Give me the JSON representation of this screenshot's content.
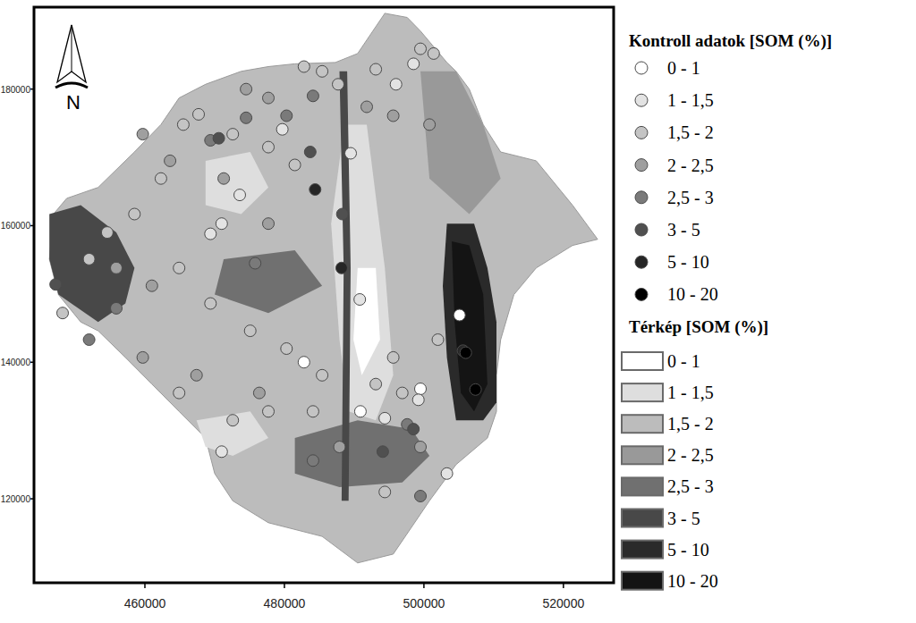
{
  "chart_data": {
    "type": "scatter",
    "legend": "right",
    "grid": false,
    "north_label": "N",
    "legend_title": "Kontroll adatok [SOM (%)]",
    "map_legend_title": "Térkép [SOM (%)]",
    "xlim": [
      444100,
      527200
    ],
    "ylim": [
      107700,
      192000
    ],
    "xticks": [
      460000,
      480000,
      500000,
      520000
    ],
    "yticks": [
      120000,
      140000,
      160000,
      180000
    ],
    "series": [
      {
        "name": "0 - 1",
        "color": "#ffffff",
        "x": [
          505100,
          482800,
          490900,
          499500
        ],
        "values": [
          146900,
          140000,
          132800,
          136100
        ]
      },
      {
        "name": "1 - 1,5",
        "color": "#e3e3e3",
        "x": [
          498500,
          496000,
          489500,
          473600,
          471000,
          469400,
          499200,
          494400,
          479700,
          471000,
          503300,
          490800
        ],
        "values": [
          183700,
          180700,
          170600,
          164500,
          160300,
          158800,
          134500,
          131800,
          174100,
          126900,
          123700,
          149200
        ]
      },
      {
        "name": "1,5 - 2",
        "color": "#c4c4c4",
        "x": [
          482800,
          485400,
          487700,
          493100,
          499500,
          501400,
          465500,
          467700,
          472600,
          477700,
          481500,
          462300,
          458500,
          454600,
          452000,
          448200,
          464900,
          469400,
          475100,
          480300,
          485400,
          495600,
          496900,
          493100,
          464900,
          472600,
          477700,
          484100,
          494400,
          502000
        ],
        "values": [
          183300,
          182600,
          180700,
          182900,
          185900,
          185200,
          174800,
          176300,
          173400,
          171500,
          168900,
          166900,
          161700,
          159000,
          155100,
          147200,
          153800,
          148600,
          144600,
          142000,
          138100,
          140700,
          135500,
          136800,
          135500,
          131500,
          132800,
          132800,
          121000,
          143300
        ]
      },
      {
        "name": "2 - 2,5",
        "color": "#9f9f9f",
        "x": [
          474500,
          477700,
          491800,
          495600,
          500800,
          459700,
          463600,
          471300,
          477700,
          461000,
          455900,
          459700,
          467400,
          476400,
          487900,
          499500
        ],
        "values": [
          180000,
          178700,
          177400,
          176100,
          174800,
          173400,
          169500,
          166900,
          160300,
          151200,
          153800,
          140700,
          138100,
          135500,
          127600,
          127600
        ]
      },
      {
        "name": "2,5 - 3",
        "color": "#7a7a7a",
        "x": [
          469400,
          474500,
          480300,
          484100,
          455900,
          452000,
          475800,
          497600,
          484100,
          499500
        ],
        "values": [
          172500,
          175800,
          176100,
          179000,
          147900,
          143300,
          154500,
          130900,
          125600,
          120400
        ]
      },
      {
        "name": "3 - 5",
        "color": "#505050",
        "x": [
          470600,
          483700,
          498500,
          488300,
          447200,
          494100
        ],
        "values": [
          172800,
          170800,
          130200,
          161700,
          151400,
          126900
        ]
      },
      {
        "name": "5 - 10",
        "color": "#262626",
        "x": [
          488200,
          484400,
          505600
        ],
        "values": [
          153800,
          165300,
          141700
        ]
      },
      {
        "name": "10 - 20",
        "color": "#000000",
        "x": [
          507400,
          506000
        ],
        "values": [
          136000,
          141400
        ]
      }
    ],
    "map_classes": [
      {
        "name": "0 - 1",
        "color": "#ffffff"
      },
      {
        "name": "1 - 1,5",
        "color": "#dedede"
      },
      {
        "name": "1,5 - 2",
        "color": "#bcbcbc"
      },
      {
        "name": "2 - 2,5",
        "color": "#999999"
      },
      {
        "name": "2,5 - 3",
        "color": "#707070"
      },
      {
        "name": "3 - 5",
        "color": "#484848"
      },
      {
        "name": "5 - 10",
        "color": "#2a2a2a"
      },
      {
        "name": "10 - 20",
        "color": "#141414"
      }
    ],
    "map_areas": [
      {
        "class": 2,
        "x": [
          481500,
          487300,
          490500,
          494400,
          497600,
          499500,
          503300,
          504600,
          506500,
          508500,
          511000,
          516100,
          521300,
          524900,
          521300,
          516100,
          512900,
          511000,
          510400,
          510400,
          509100,
          504600,
          500800,
          498200,
          495600,
          490500,
          485400,
          477700,
          472600,
          470000,
          468700,
          464900,
          461000,
          457200,
          453300,
          450800,
          447600,
          446300,
          446900,
          448800,
          453300,
          458500,
          462300,
          464900,
          468700,
          473800,
          477700
        ],
        "y": [
          183700,
          183900,
          185200,
          191100,
          190500,
          188500,
          183900,
          182600,
          180000,
          174800,
          170800,
          169500,
          163000,
          158000,
          157100,
          153800,
          149900,
          143300,
          138100,
          132800,
          128900,
          125000,
          119700,
          115800,
          111900,
          110600,
          114500,
          116500,
          119700,
          123700,
          128900,
          132800,
          136800,
          140700,
          144600,
          145900,
          149900,
          155100,
          161700,
          164000,
          165600,
          170800,
          174800,
          178700,
          180700,
          182600,
          183300
        ]
      },
      {
        "class": 3,
        "x": [
          499500,
          504600,
          508500,
          511000,
          506500,
          500800
        ],
        "y": [
          182600,
          182600,
          174800,
          166900,
          161700,
          166900
        ]
      },
      {
        "class": 5,
        "x": [
          446300,
          450800,
          455900,
          458500,
          457200,
          453300,
          447600,
          446300
        ],
        "y": [
          161700,
          163000,
          159000,
          153800,
          148600,
          145900,
          149900,
          155100
        ]
      },
      {
        "class": 4,
        "x": [
          471300,
          481500,
          485400,
          477700,
          470000
        ],
        "y": [
          155100,
          156400,
          151200,
          147200,
          149900
        ]
      },
      {
        "class": 4,
        "x": [
          481500,
          490500,
          498200,
          500800,
          496900,
          487900,
          481500
        ],
        "y": [
          128900,
          131500,
          130200,
          126300,
          122400,
          121700,
          123700
        ]
      },
      {
        "class": 1,
        "x": [
          468700,
          475100,
          477700,
          473800,
          468700
        ],
        "y": [
          169500,
          170800,
          165600,
          161700,
          163000
        ]
      },
      {
        "class": 1,
        "x": [
          467400,
          475100,
          477700,
          472600,
          468700
        ],
        "y": [
          131500,
          132800,
          128900,
          126300,
          127600
        ]
      },
      {
        "class": 1,
        "x": [
          488600,
          491800,
          494400,
          495600,
          493100,
          489200,
          487900,
          486700
        ],
        "y": [
          174800,
          174800,
          153800,
          138100,
          131500,
          132800,
          143300,
          160300
        ]
      },
      {
        "class": 0,
        "x": [
          490500,
          493100,
          493700,
          491100,
          489900
        ],
        "y": [
          153800,
          153800,
          143300,
          138100,
          143300
        ]
      },
      {
        "class": 6,
        "x": [
          503300,
          507200,
          509100,
          510400,
          510400,
          508500,
          504600,
          503300,
          502700
        ],
        "y": [
          160300,
          160300,
          153800,
          145900,
          134100,
          131500,
          131500,
          140700,
          151200
        ]
      },
      {
        "class": 7,
        "x": [
          504000,
          506500,
          508500,
          509100,
          507200,
          505300,
          504400
        ],
        "y": [
          157700,
          157100,
          149900,
          136800,
          132800,
          135500,
          145900
        ]
      },
      {
        "class": 5,
        "x": [
          487900,
          489000,
          489500,
          489200,
          488200,
          488500
        ],
        "y": [
          182600,
          182600,
          153800,
          119700,
          119700,
          153800
        ]
      }
    ]
  }
}
